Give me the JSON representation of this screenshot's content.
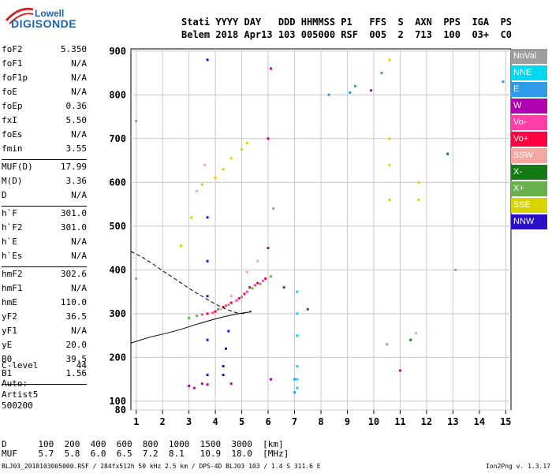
{
  "logo": {
    "line1": "Lowell",
    "line2": "DIGISONDE"
  },
  "header": {
    "line1": "Stati YYYY DAY   DDD HHMMSS P1   FFS  S  AXN  PPS  IGA  PS",
    "line2": "Belem 2018 Apr13 103 005000 RSF  005  2  713  100  03+  C0"
  },
  "params": {
    "g1": [
      {
        "k": "foF2",
        "v": "5.350"
      },
      {
        "k": "foF1",
        "v": "N/A"
      },
      {
        "k": "foF1p",
        "v": "N/A"
      },
      {
        "k": "foE",
        "v": "N/A"
      },
      {
        "k": "foEp",
        "v": "0.36"
      },
      {
        "k": "fxI",
        "v": "5.50"
      },
      {
        "k": "foEs",
        "v": "N/A"
      },
      {
        "k": "fmin",
        "v": "3.55"
      }
    ],
    "g2": [
      {
        "k": "MUF(D)",
        "v": "17.99"
      },
      {
        "k": "M(D)",
        "v": "3.36"
      },
      {
        "k": "D",
        "v": "N/A"
      }
    ],
    "g3": [
      {
        "k": "h`F",
        "v": "301.0"
      },
      {
        "k": "h`F2",
        "v": "301.0"
      },
      {
        "k": "h`E",
        "v": "N/A"
      },
      {
        "k": "h`Es",
        "v": "N/A"
      }
    ],
    "g4": [
      {
        "k": "hmF2",
        "v": "302.6"
      },
      {
        "k": "hmF1",
        "v": "N/A"
      },
      {
        "k": "hmE",
        "v": "110.0"
      },
      {
        "k": "yF2",
        "v": "36.5"
      },
      {
        "k": "yF1",
        "v": "N/A"
      },
      {
        "k": "yE",
        "v": "20.0"
      },
      {
        "k": "B0",
        "v": "39.5"
      },
      {
        "k": "B1",
        "v": "1.56"
      }
    ]
  },
  "clevel": {
    "k": "C-level",
    "v": "44"
  },
  "auto": {
    "l1": "Auto:",
    "l2": "Artist5",
    "l3": "500200"
  },
  "legend": [
    {
      "label": "NoVal",
      "color": "#9e9e9e"
    },
    {
      "label": "NNE",
      "color": "#00d8f0"
    },
    {
      "label": "E",
      "color": "#2f9ae6"
    },
    {
      "label": "W",
      "color": "#b000b0"
    },
    {
      "label": "Vo-",
      "color": "#ff3fa8"
    },
    {
      "label": "Vo+",
      "color": "#ff0040"
    },
    {
      "label": "SSW",
      "color": "#f4a6a0"
    },
    {
      "label": "X-",
      "color": "#157a15"
    },
    {
      "label": "X+",
      "color": "#6ab04c"
    },
    {
      "label": "SSE",
      "color": "#d8d400"
    },
    {
      "label": "NNW",
      "color": "#2a10c8"
    }
  ],
  "table": {
    "row1": "D      100  200  400  600  800  1000  1500  3000  [km]",
    "row2": "MUF    5.7  5.8  6.0  6.5  7.2  8.1   10.9  18.0  [MHz]"
  },
  "footer": {
    "left": "BLJ03_2018103005000.RSF / 284fx512h 50 kHz 2.5 km / DPS-4D BLJ03 103 / 1.4 S 311.6 E",
    "right": "Ion2Png v. 1.3.17"
  },
  "chart_data": {
    "type": "scatter",
    "xlim": [
      0.8,
      15.2
    ],
    "ylim": [
      80,
      905
    ],
    "x_ticks": [
      1,
      2,
      3,
      4,
      5,
      6,
      7,
      8,
      9,
      10,
      11,
      12,
      13,
      14,
      15
    ],
    "y_ticks": [
      80,
      100,
      200,
      300,
      400,
      500,
      600,
      700,
      800,
      900
    ],
    "grid": true,
    "series": [
      {
        "colorKey": "Vo+",
        "points": [
          [
            3.7,
            300
          ],
          [
            4.0,
            305
          ],
          [
            4.3,
            315
          ],
          [
            4.6,
            325
          ],
          [
            4.9,
            335
          ],
          [
            5.1,
            345
          ],
          [
            5.3,
            360
          ],
          [
            5.6,
            370
          ],
          [
            5.9,
            380
          ]
        ]
      },
      {
        "colorKey": "Vo-",
        "points": [
          [
            3.5,
            298
          ],
          [
            3.9,
            302
          ],
          [
            4.4,
            318
          ],
          [
            4.8,
            330
          ],
          [
            5.2,
            350
          ],
          [
            5.5,
            365
          ],
          [
            5.8,
            375
          ]
        ]
      },
      {
        "colorKey": "X+",
        "points": [
          [
            3.0,
            290
          ],
          [
            3.3,
            295
          ],
          [
            4.1,
            310
          ],
          [
            4.5,
            320
          ],
          [
            5.0,
            338
          ],
          [
            5.4,
            358
          ],
          [
            5.7,
            368
          ],
          [
            6.1,
            385
          ]
        ]
      },
      {
        "colorKey": "SSE",
        "points": [
          [
            2.7,
            455
          ],
          [
            3.1,
            520
          ],
          [
            3.5,
            595
          ],
          [
            4.0,
            610
          ],
          [
            4.3,
            630
          ],
          [
            4.6,
            655
          ],
          [
            5.0,
            675
          ],
          [
            5.2,
            690
          ],
          [
            10.6,
            880
          ],
          [
            10.6,
            700
          ],
          [
            10.6,
            640
          ],
          [
            10.6,
            560
          ],
          [
            11.7,
            600
          ],
          [
            11.7,
            560
          ]
        ]
      },
      {
        "colorKey": "W",
        "points": [
          [
            3.0,
            135
          ],
          [
            3.2,
            130
          ],
          [
            3.5,
            140
          ],
          [
            3.7,
            138
          ],
          [
            4.6,
            140
          ],
          [
            6.0,
            450
          ],
          [
            6.0,
            700
          ],
          [
            6.1,
            860
          ],
          [
            6.1,
            150
          ],
          [
            9.9,
            810
          ],
          [
            11.0,
            170
          ]
        ]
      },
      {
        "colorKey": "NNW",
        "points": [
          [
            3.7,
            880
          ],
          [
            3.7,
            520
          ],
          [
            3.7,
            420
          ],
          [
            3.7,
            340
          ],
          [
            3.7,
            240
          ],
          [
            3.7,
            160
          ],
          [
            4.3,
            160
          ],
          [
            4.3,
            180
          ],
          [
            4.4,
            220
          ],
          [
            4.5,
            260
          ]
        ]
      },
      {
        "colorKey": "E",
        "points": [
          [
            7.0,
            120
          ],
          [
            7.0,
            150
          ],
          [
            8.3,
            800
          ],
          [
            9.1,
            805
          ],
          [
            9.3,
            820
          ],
          [
            10.3,
            850
          ],
          [
            14.9,
            830
          ]
        ]
      },
      {
        "colorKey": "NNE",
        "points": [
          [
            7.1,
            250
          ],
          [
            7.1,
            300
          ],
          [
            7.1,
            180
          ],
          [
            7.1,
            350
          ],
          [
            7.1,
            150
          ],
          [
            7.1,
            130
          ]
        ]
      },
      {
        "colorKey": "SSW",
        "points": [
          [
            3.3,
            580
          ],
          [
            3.6,
            640
          ],
          [
            4.2,
            310
          ],
          [
            4.6,
            340
          ],
          [
            5.2,
            395
          ],
          [
            5.6,
            420
          ],
          [
            11.6,
            255
          ]
        ]
      },
      {
        "colorKey": "X-",
        "points": [
          [
            6.6,
            360
          ],
          [
            7.5,
            310
          ],
          [
            12.8,
            665
          ],
          [
            11.4,
            240
          ]
        ]
      },
      {
        "colorKey": "NoVal",
        "points": [
          [
            1.0,
            740
          ],
          [
            1.0,
            380
          ],
          [
            6.2,
            540
          ],
          [
            10.5,
            230
          ],
          [
            13.1,
            400
          ]
        ]
      }
    ],
    "profile_solid": [
      [
        0.8,
        233
      ],
      [
        1.5,
        246
      ],
      [
        2.2,
        256
      ],
      [
        2.8,
        266
      ],
      [
        3.2,
        274
      ],
      [
        3.6,
        281
      ],
      [
        4.0,
        288
      ],
      [
        4.4,
        294
      ],
      [
        4.8,
        299
      ],
      [
        5.1,
        302
      ],
      [
        5.35,
        304
      ],
      [
        5.3,
        307
      ]
    ],
    "profile_dashed": [
      [
        0.8,
        442
      ],
      [
        1.2,
        430
      ],
      [
        1.6,
        415
      ],
      [
        2.0,
        398
      ],
      [
        2.4,
        382
      ],
      [
        2.8,
        366
      ],
      [
        3.2,
        350
      ],
      [
        3.6,
        336
      ],
      [
        4.0,
        322
      ],
      [
        4.4,
        310
      ],
      [
        4.8,
        302
      ],
      [
        5.1,
        300
      ]
    ]
  }
}
